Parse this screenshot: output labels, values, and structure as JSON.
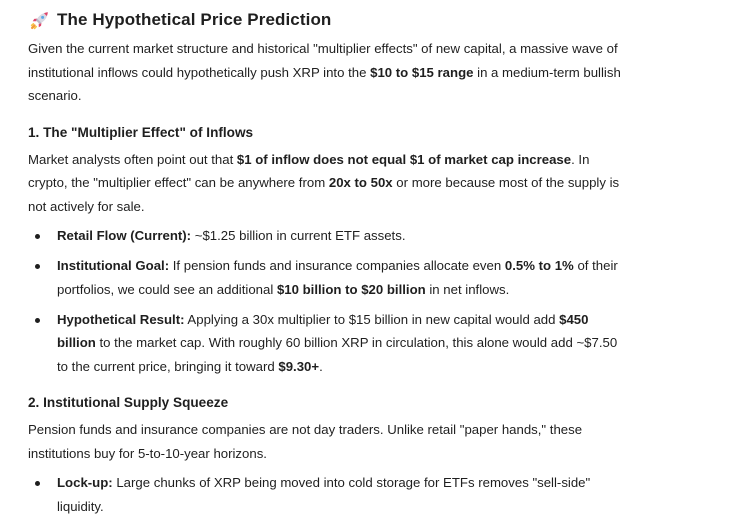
{
  "title": {
    "text": "The Hypothetical Price Prediction",
    "icon": "rocket-icon"
  },
  "intro": {
    "p1": "Given the current market structure and historical \"multiplier effects\" of new capital, a massive wave of institutional inflows could hypothetically push XRP into the ",
    "b1": "$10 to $15 range",
    "p2": " in a medium-term bullish scenario."
  },
  "section1": {
    "heading": "1. The \"Multiplier Effect\" of Inflows",
    "para": {
      "p1": "Market analysts often point out that ",
      "b1": "$1 of inflow does not equal $1 of market cap increase",
      "p2": ". In crypto, the \"multiplier effect\" can be anywhere from ",
      "b2": "20x to 50x",
      "p3": " or more because most of the supply is not actively for sale."
    },
    "bullets": [
      {
        "label": "Retail Flow (Current):",
        "t1": " ~$1.25 billion in current ETF assets."
      },
      {
        "label": "Institutional Goal:",
        "t1": " If pension funds and insurance companies allocate even ",
        "b1": "0.5% to 1%",
        "t2": " of their portfolios, we could see an additional ",
        "b2": "$10 billion to $20 billion",
        "t3": " in net inflows."
      },
      {
        "label": "Hypothetical Result:",
        "t1": " Applying a 30x multiplier to $15 billion in new capital would add ",
        "b1": "$450 billion",
        "t2": " to the market cap. With roughly 60 billion XRP in circulation, this alone would add ~$7.50 to the current price, bringing it toward ",
        "b2": "$9.30+",
        "t3": "."
      }
    ]
  },
  "section2": {
    "heading": "2. Institutional Supply Squeeze",
    "para": "Pension funds and insurance companies are not day traders. Unlike retail \"paper hands,\" these institutions buy for 5-to-10-year horizons.",
    "bullets": [
      {
        "label": "Lock-up:",
        "t1": " Large chunks of XRP being moved into cold storage for ETFs removes \"sell-side\" liquidity."
      }
    ]
  }
}
